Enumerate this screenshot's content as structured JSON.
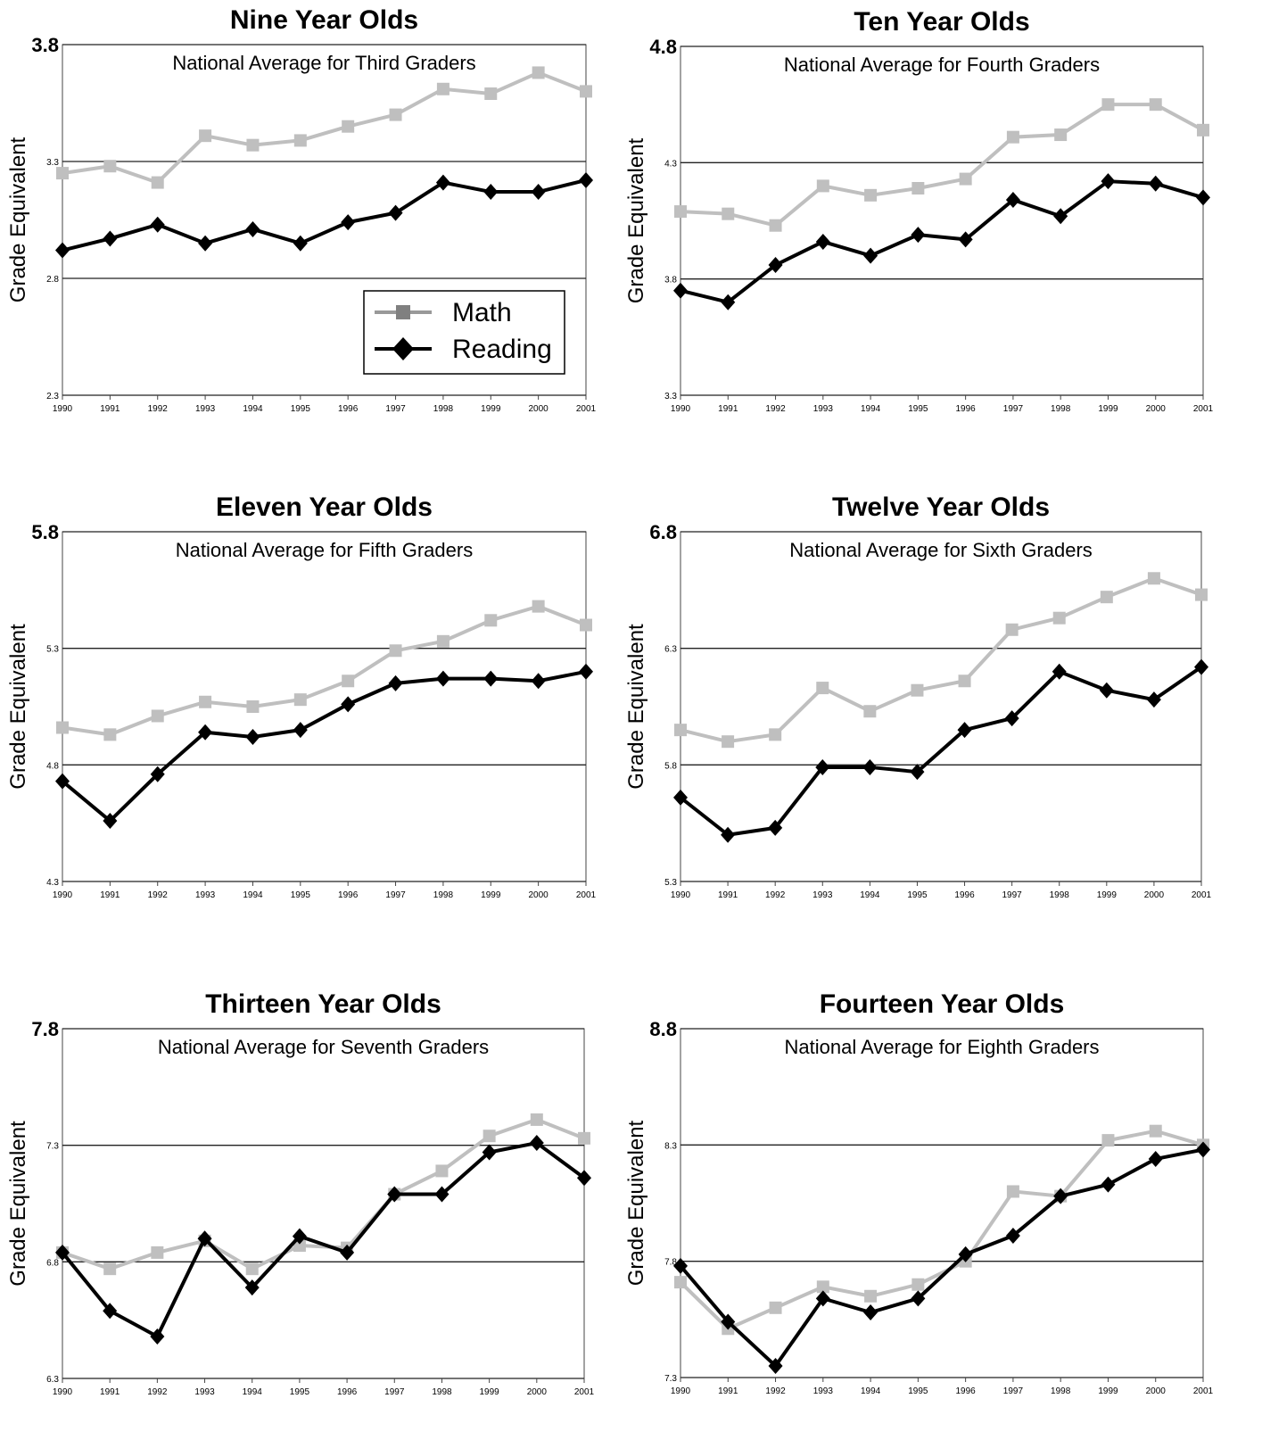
{
  "chart_data": [
    {
      "type": "line",
      "title": "Nine Year Olds",
      "subtitle": "National Average for Third Graders",
      "y_label": "Grade Equivalent",
      "categories": [
        "1990",
        "1991",
        "1992",
        "1993",
        "1994",
        "1995",
        "1996",
        "1997",
        "1998",
        "1999",
        "2000",
        "2001"
      ],
      "series": [
        {
          "name": "Math",
          "color": "#bfbfbf",
          "marker": "square",
          "values": [
            3.25,
            3.28,
            3.21,
            3.41,
            3.37,
            3.39,
            3.45,
            3.5,
            3.61,
            3.59,
            3.68,
            3.6
          ]
        },
        {
          "name": "Reading",
          "color": "#000000",
          "marker": "diamond",
          "values": [
            2.92,
            2.97,
            3.03,
            2.95,
            3.01,
            2.95,
            3.04,
            3.08,
            3.21,
            3.17,
            3.17,
            3.22
          ]
        }
      ],
      "ylim": [
        2.3,
        3.8
      ],
      "yticks": [
        2.3,
        2.8,
        3.3,
        3.8
      ],
      "grid": true,
      "legend": "lower right"
    },
    {
      "type": "line",
      "title": "Ten Year Olds",
      "subtitle": "National Average for Fourth Graders",
      "y_label": "Grade Equivalent",
      "categories": [
        "1990",
        "1991",
        "1992",
        "1993",
        "1994",
        "1995",
        "1996",
        "1997",
        "1998",
        "1999",
        "2000",
        "2001"
      ],
      "series": [
        {
          "name": "Math",
          "color": "#bfbfbf",
          "marker": "square",
          "values": [
            4.09,
            4.08,
            4.03,
            4.2,
            4.16,
            4.19,
            4.23,
            4.41,
            4.42,
            4.55,
            4.55,
            4.44
          ]
        },
        {
          "name": "Reading",
          "color": "#000000",
          "marker": "diamond",
          "values": [
            3.75,
            3.7,
            3.86,
            3.96,
            3.9,
            3.99,
            3.97,
            4.14,
            4.07,
            4.22,
            4.21,
            4.15
          ]
        }
      ],
      "ylim": [
        3.3,
        4.8
      ],
      "yticks": [
        3.3,
        3.8,
        4.3,
        4.8
      ],
      "grid": true
    },
    {
      "type": "line",
      "title": "Eleven Year Olds",
      "subtitle": "National Average for Fifth Graders",
      "y_label": "Grade Equivalent",
      "categories": [
        "1990",
        "1991",
        "1992",
        "1993",
        "1994",
        "1995",
        "1996",
        "1997",
        "1998",
        "1999",
        "2000",
        "2001"
      ],
      "series": [
        {
          "name": "Math",
          "color": "#bfbfbf",
          "marker": "square",
          "values": [
            4.96,
            4.93,
            5.01,
            5.07,
            5.05,
            5.08,
            5.16,
            5.29,
            5.33,
            5.42,
            5.48,
            5.4
          ]
        },
        {
          "name": "Reading",
          "color": "#000000",
          "marker": "diamond",
          "values": [
            4.73,
            4.56,
            4.76,
            4.94,
            4.92,
            4.95,
            5.06,
            5.15,
            5.17,
            5.17,
            5.16,
            5.2
          ]
        }
      ],
      "ylim": [
        4.3,
        5.8
      ],
      "yticks": [
        4.3,
        4.8,
        5.3,
        5.8
      ],
      "grid": true
    },
    {
      "type": "line",
      "title": "Twelve Year Olds",
      "subtitle": "National Average for Sixth Graders",
      "y_label": "Grade Equivalent",
      "categories": [
        "1990",
        "1991",
        "1992",
        "1993",
        "1994",
        "1995",
        "1996",
        "1997",
        "1998",
        "1999",
        "2000",
        "2001"
      ],
      "series": [
        {
          "name": "Math",
          "color": "#bfbfbf",
          "marker": "square",
          "values": [
            5.95,
            5.9,
            5.93,
            6.13,
            6.03,
            6.12,
            6.16,
            6.38,
            6.43,
            6.52,
            6.6,
            6.53
          ]
        },
        {
          "name": "Reading",
          "color": "#000000",
          "marker": "diamond",
          "values": [
            5.66,
            5.5,
            5.53,
            5.79,
            5.79,
            5.77,
            5.95,
            6.0,
            6.2,
            6.12,
            6.08,
            6.22
          ]
        }
      ],
      "ylim": [
        5.3,
        6.8
      ],
      "yticks": [
        5.3,
        5.8,
        6.3,
        6.8
      ],
      "grid": true
    },
    {
      "type": "line",
      "title": "Thirteen Year Olds",
      "subtitle": "National Average for Seventh Graders",
      "y_label": "Grade Equivalent",
      "categories": [
        "1990",
        "1991",
        "1992",
        "1993",
        "1994",
        "1995",
        "1996",
        "1997",
        "1998",
        "1999",
        "2000",
        "2001"
      ],
      "series": [
        {
          "name": "Math",
          "color": "#bfbfbf",
          "marker": "square",
          "values": [
            6.84,
            6.77,
            6.84,
            6.89,
            6.77,
            6.87,
            6.86,
            7.09,
            7.19,
            7.34,
            7.41,
            7.33
          ]
        },
        {
          "name": "Reading",
          "color": "#000000",
          "marker": "diamond",
          "values": [
            6.84,
            6.59,
            6.48,
            6.9,
            6.69,
            6.91,
            6.84,
            7.09,
            7.09,
            7.27,
            7.31,
            7.16
          ]
        }
      ],
      "ylim": [
        6.3,
        7.8
      ],
      "yticks": [
        6.3,
        6.8,
        7.3,
        7.8
      ],
      "grid": true
    },
    {
      "type": "line",
      "title": "Fourteen Year Olds",
      "subtitle": "National Average for Eighth Graders",
      "y_label": "Grade Equivalent",
      "categories": [
        "1990",
        "1991",
        "1992",
        "1993",
        "1994",
        "1995",
        "1996",
        "1997",
        "1998",
        "1999",
        "2000",
        "2001"
      ],
      "series": [
        {
          "name": "Math",
          "color": "#bfbfbf",
          "marker": "square",
          "values": [
            7.71,
            7.51,
            7.6,
            7.69,
            7.65,
            7.7,
            7.8,
            8.1,
            8.08,
            8.32,
            8.36,
            8.3
          ]
        },
        {
          "name": "Reading",
          "color": "#000000",
          "marker": "diamond",
          "values": [
            7.78,
            7.54,
            7.35,
            7.64,
            7.58,
            7.64,
            7.83,
            7.91,
            8.08,
            8.13,
            8.24,
            8.28
          ]
        }
      ],
      "ylim": [
        7.3,
        8.8
      ],
      "yticks": [
        7.3,
        7.8,
        8.3,
        8.8
      ],
      "grid": true
    }
  ]
}
